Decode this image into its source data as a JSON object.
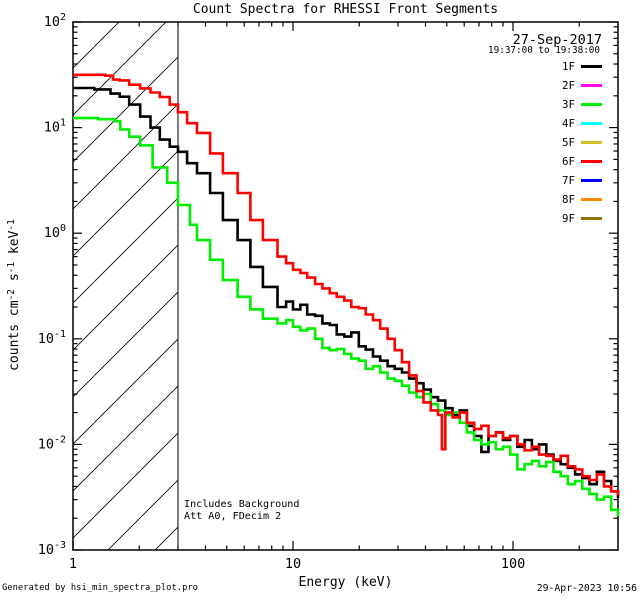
{
  "title": "Count Spectra for RHESSI Front Segments",
  "header": {
    "date": "27-Sep-2017",
    "time_range": "19:37:00 to 19:38:00"
  },
  "legend": {
    "entries": [
      {
        "label": "1F",
        "color": "#000000"
      },
      {
        "label": "2F",
        "color": "#ff00ff"
      },
      {
        "label": "3F",
        "color": "#00ee00"
      },
      {
        "label": "4F",
        "color": "#00ffff"
      },
      {
        "label": "5F",
        "color": "#cfc227"
      },
      {
        "label": "6F",
        "color": "#ff0000"
      },
      {
        "label": "7F",
        "color": "#0000ff"
      },
      {
        "label": "8F",
        "color": "#ff8c00"
      },
      {
        "label": "9F",
        "color": "#8c7500"
      }
    ]
  },
  "annotations": {
    "line1": "Includes Background",
    "line2": "Att A0, FDecim 2"
  },
  "footer": {
    "left": "Generated by hsi_min_spectra_plot.pro",
    "right": "29-Apr-2023 10:56"
  },
  "chart_data": {
    "type": "line",
    "subtype": "step-histogram-log-log",
    "title": "Count Spectra for RHESSI Front Segments",
    "xlabel": "Energy (keV)",
    "ylabel": "counts cm-2 s-1 keV-1",
    "ylabel_segments": [
      {
        "t": "counts cm"
      },
      {
        "t": "-2",
        "sup": true
      },
      {
        "t": " s"
      },
      {
        "t": "-1",
        "sup": true
      },
      {
        "t": " keV"
      },
      {
        "t": "-1",
        "sup": true
      }
    ],
    "x_scale": "log",
    "y_scale": "log",
    "xlim": [
      1,
      300
    ],
    "ylim": [
      0.001,
      100
    ],
    "x_ticks": [
      {
        "value": 1,
        "label": "1"
      },
      {
        "value": 10,
        "label": "10"
      },
      {
        "value": 100,
        "label": "100"
      }
    ],
    "y_ticks": [
      {
        "value": 100,
        "base": "10",
        "exp": "2"
      },
      {
        "value": 10,
        "base": "10",
        "exp": "1"
      },
      {
        "value": 1,
        "base": "10",
        "exp": "0"
      },
      {
        "value": 0.1,
        "base": "10",
        "exp": "-1"
      },
      {
        "value": 0.01,
        "base": "10",
        "exp": "-2"
      },
      {
        "value": 0.001,
        "base": "10",
        "exp": "-3"
      }
    ],
    "hatch_region": {
      "x_min": 1,
      "x_max": 3,
      "style": "diagonal-lines"
    },
    "legend_position": "top-right-inside",
    "grid": false,
    "series": [
      {
        "name": "1F",
        "color": "#000000",
        "points": [
          [
            1.0,
            23.7
          ],
          [
            1.25,
            23.0
          ],
          [
            1.48,
            21.0
          ],
          [
            1.63,
            19.6
          ],
          [
            1.8,
            16.5
          ],
          [
            2.02,
            12.7
          ],
          [
            2.25,
            10.0
          ],
          [
            2.48,
            7.7
          ],
          [
            2.75,
            6.6
          ],
          [
            3.0,
            5.9
          ],
          [
            3.3,
            4.6
          ],
          [
            3.66,
            3.7
          ],
          [
            4.2,
            2.4
          ],
          [
            4.8,
            1.33
          ],
          [
            5.6,
            0.86
          ],
          [
            6.4,
            0.48
          ],
          [
            7.3,
            0.31
          ],
          [
            8.5,
            0.2
          ],
          [
            9.3,
            0.225
          ],
          [
            10.0,
            0.19
          ],
          [
            10.8,
            0.21
          ],
          [
            11.6,
            0.17
          ],
          [
            12.6,
            0.165
          ],
          [
            13.6,
            0.14
          ],
          [
            14.7,
            0.135
          ],
          [
            15.8,
            0.11
          ],
          [
            17.1,
            0.105
          ],
          [
            18.4,
            0.115
          ],
          [
            19.9,
            0.085
          ],
          [
            21.4,
            0.079
          ],
          [
            23.1,
            0.068
          ],
          [
            24.9,
            0.062
          ],
          [
            26.9,
            0.055
          ],
          [
            29.0,
            0.052
          ],
          [
            31.3,
            0.048
          ],
          [
            33.7,
            0.042
          ],
          [
            36.4,
            0.038
          ],
          [
            39.2,
            0.033
          ],
          [
            42.3,
            0.028
          ],
          [
            45.6,
            0.026
          ],
          [
            49.2,
            0.022
          ],
          [
            53.1,
            0.019
          ],
          [
            57.2,
            0.021
          ],
          [
            61.7,
            0.015
          ],
          [
            66.6,
            0.012
          ],
          [
            71.8,
            0.0085
          ],
          [
            77.4,
            0.012
          ],
          [
            83.5,
            0.013
          ],
          [
            90.0,
            0.011
          ],
          [
            97.1,
            0.012
          ],
          [
            104.7,
            0.0095
          ],
          [
            112.9,
            0.011
          ],
          [
            121.8,
            0.009
          ],
          [
            131.3,
            0.01
          ],
          [
            141.6,
            0.008
          ],
          [
            152.7,
            0.007
          ],
          [
            164.7,
            0.0065
          ],
          [
            177.6,
            0.006
          ],
          [
            191.5,
            0.0052
          ],
          [
            206.5,
            0.0048
          ],
          [
            222.7,
            0.0042
          ],
          [
            240.2,
            0.0055
          ],
          [
            259.0,
            0.0045
          ],
          [
            279.3,
            0.0036
          ],
          [
            300,
            0.0031
          ]
        ]
      },
      {
        "name": "3F",
        "color": "#00ee00",
        "points": [
          [
            1.0,
            12.3
          ],
          [
            1.3,
            12.0
          ],
          [
            1.55,
            11.5
          ],
          [
            1.64,
            9.6
          ],
          [
            1.8,
            8.2
          ],
          [
            2.02,
            6.8
          ],
          [
            2.3,
            4.2
          ],
          [
            2.68,
            3.0
          ],
          [
            3.0,
            1.85
          ],
          [
            3.4,
            1.2
          ],
          [
            3.66,
            0.86
          ],
          [
            4.2,
            0.56
          ],
          [
            4.8,
            0.36
          ],
          [
            5.6,
            0.25
          ],
          [
            6.4,
            0.19
          ],
          [
            7.3,
            0.155
          ],
          [
            8.5,
            0.14
          ],
          [
            9.3,
            0.15
          ],
          [
            10.0,
            0.13
          ],
          [
            10.8,
            0.12
          ],
          [
            11.6,
            0.125
          ],
          [
            12.6,
            0.1
          ],
          [
            13.6,
            0.082
          ],
          [
            14.7,
            0.078
          ],
          [
            15.8,
            0.08
          ],
          [
            17.1,
            0.072
          ],
          [
            18.4,
            0.065
          ],
          [
            19.9,
            0.062
          ],
          [
            21.4,
            0.052
          ],
          [
            23.1,
            0.055
          ],
          [
            24.9,
            0.048
          ],
          [
            26.9,
            0.042
          ],
          [
            29.0,
            0.04
          ],
          [
            31.3,
            0.036
          ],
          [
            33.7,
            0.031
          ],
          [
            36.4,
            0.028
          ],
          [
            39.2,
            0.03
          ],
          [
            42.3,
            0.024
          ],
          [
            45.6,
            0.021
          ],
          [
            49.2,
            0.019
          ],
          [
            53.1,
            0.02
          ],
          [
            57.2,
            0.016
          ],
          [
            61.7,
            0.013
          ],
          [
            66.6,
            0.011
          ],
          [
            71.8,
            0.01
          ],
          [
            77.4,
            0.0105
          ],
          [
            83.5,
            0.009
          ],
          [
            90.0,
            0.0095
          ],
          [
            97.1,
            0.008
          ],
          [
            104.7,
            0.0058
          ],
          [
            112.9,
            0.0065
          ],
          [
            121.8,
            0.007
          ],
          [
            131.3,
            0.0062
          ],
          [
            141.6,
            0.0068
          ],
          [
            152.7,
            0.0055
          ],
          [
            164.7,
            0.005
          ],
          [
            177.6,
            0.0042
          ],
          [
            191.5,
            0.0045
          ],
          [
            206.5,
            0.0038
          ],
          [
            222.7,
            0.0034
          ],
          [
            240.2,
            0.003
          ],
          [
            259.0,
            0.0032
          ],
          [
            279.3,
            0.0024
          ],
          [
            300,
            0.0021
          ]
        ]
      },
      {
        "name": "6F",
        "color": "#ff0000",
        "points": [
          [
            1.0,
            31.6
          ],
          [
            1.4,
            31.0
          ],
          [
            1.52,
            28.5
          ],
          [
            1.63,
            28.0
          ],
          [
            1.8,
            25.5
          ],
          [
            2.02,
            23.5
          ],
          [
            2.25,
            21.5
          ],
          [
            2.48,
            19.5
          ],
          [
            2.75,
            16.5
          ],
          [
            3.0,
            14.0
          ],
          [
            3.3,
            11.0
          ],
          [
            3.66,
            8.9
          ],
          [
            4.2,
            5.7
          ],
          [
            4.8,
            3.7
          ],
          [
            5.6,
            2.4
          ],
          [
            6.4,
            1.33
          ],
          [
            7.3,
            0.86
          ],
          [
            8.5,
            0.6
          ],
          [
            9.3,
            0.52
          ],
          [
            10.0,
            0.45
          ],
          [
            10.8,
            0.42
          ],
          [
            11.6,
            0.38
          ],
          [
            12.6,
            0.33
          ],
          [
            13.6,
            0.3
          ],
          [
            14.7,
            0.27
          ],
          [
            15.8,
            0.25
          ],
          [
            17.1,
            0.23
          ],
          [
            18.4,
            0.2
          ],
          [
            19.9,
            0.195
          ],
          [
            21.4,
            0.17
          ],
          [
            23.1,
            0.15
          ],
          [
            24.9,
            0.125
          ],
          [
            26.9,
            0.1
          ],
          [
            29.0,
            0.078
          ],
          [
            31.3,
            0.06
          ],
          [
            33.7,
            0.045
          ],
          [
            36.4,
            0.032
          ],
          [
            39.2,
            0.025
          ],
          [
            42.3,
            0.021
          ],
          [
            45.6,
            0.019
          ],
          [
            47.5,
            0.009
          ],
          [
            49.2,
            0.02
          ],
          [
            53.1,
            0.018
          ],
          [
            57.2,
            0.02
          ],
          [
            61.7,
            0.016
          ],
          [
            66.6,
            0.014
          ],
          [
            71.8,
            0.015
          ],
          [
            77.4,
            0.012
          ],
          [
            83.5,
            0.013
          ],
          [
            90.0,
            0.0115
          ],
          [
            97.1,
            0.012
          ],
          [
            104.7,
            0.01
          ],
          [
            112.9,
            0.0088
          ],
          [
            121.8,
            0.0095
          ],
          [
            131.3,
            0.008
          ],
          [
            141.6,
            0.0078
          ],
          [
            152.7,
            0.0072
          ],
          [
            164.7,
            0.0078
          ],
          [
            177.6,
            0.0062
          ],
          [
            191.5,
            0.0058
          ],
          [
            206.5,
            0.005
          ],
          [
            222.7,
            0.0046
          ],
          [
            240.2,
            0.0052
          ],
          [
            259.0,
            0.004
          ],
          [
            279.3,
            0.0036
          ],
          [
            300,
            0.0033
          ]
        ]
      }
    ]
  }
}
